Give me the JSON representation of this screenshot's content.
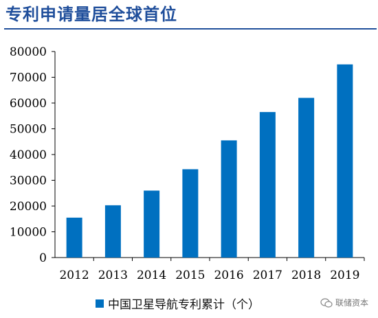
{
  "title": "专利申请量居全球首位",
  "watermark": "联储资本",
  "colors": {
    "bar": "#0070c0",
    "title": "#1f4e9b",
    "axis": "#000000"
  },
  "chart_data": {
    "type": "bar",
    "categories": [
      "2012",
      "2013",
      "2014",
      "2015",
      "2016",
      "2017",
      "2018",
      "2019"
    ],
    "series": [
      {
        "name": "中国卫星导航专利累计（个）",
        "values": [
          15500,
          20300,
          26000,
          34300,
          45500,
          56500,
          62000,
          75000
        ]
      }
    ],
    "ylim": [
      0,
      80000
    ],
    "yticks": [
      "0",
      "10000",
      "20000",
      "30000",
      "40000",
      "50000",
      "60000",
      "70000",
      "80000"
    ],
    "grid": false,
    "legend": "bottom"
  }
}
